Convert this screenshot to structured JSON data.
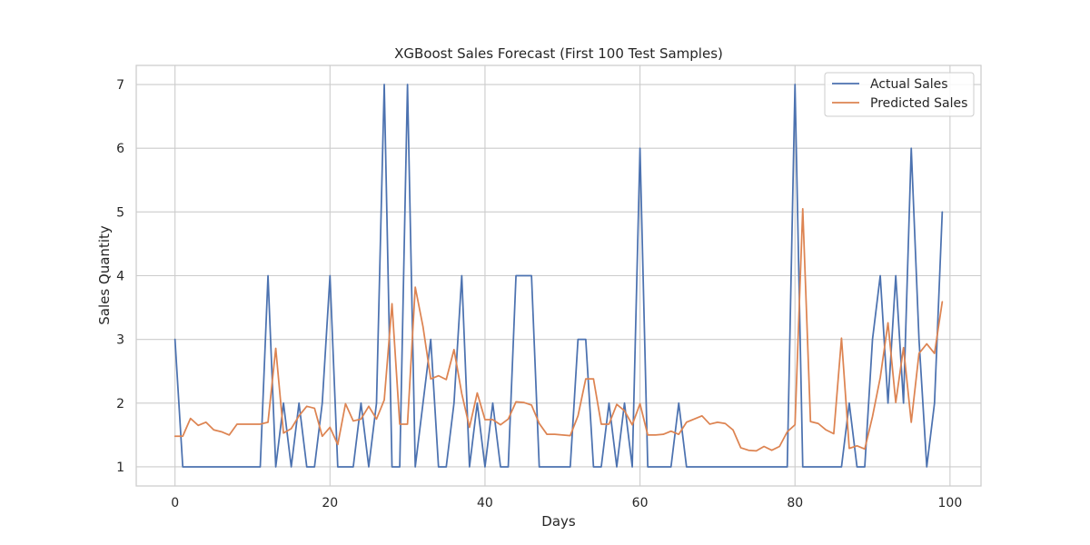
{
  "chart_data": {
    "type": "line",
    "title": "XGBoost Sales Forecast (First 100 Test Samples)",
    "xlabel": "Days",
    "ylabel": "Sales Quantity",
    "xlim": [
      -5,
      104
    ],
    "ylim": [
      0.7,
      7.3
    ],
    "xticks": [
      0,
      20,
      40,
      60,
      80,
      100
    ],
    "yticks": [
      1,
      2,
      3,
      4,
      5,
      6,
      7
    ],
    "grid": true,
    "legend_position": "top-right",
    "x": [
      0,
      1,
      2,
      3,
      4,
      5,
      6,
      7,
      8,
      9,
      10,
      11,
      12,
      13,
      14,
      15,
      16,
      17,
      18,
      19,
      20,
      21,
      22,
      23,
      24,
      25,
      26,
      27,
      28,
      29,
      30,
      31,
      32,
      33,
      34,
      35,
      36,
      37,
      38,
      39,
      40,
      41,
      42,
      43,
      44,
      45,
      46,
      47,
      48,
      49,
      50,
      51,
      52,
      53,
      54,
      55,
      56,
      57,
      58,
      59,
      60,
      61,
      62,
      63,
      64,
      65,
      66,
      67,
      68,
      69,
      70,
      71,
      72,
      73,
      74,
      75,
      76,
      77,
      78,
      79,
      80,
      81,
      82,
      83,
      84,
      85,
      86,
      87,
      88,
      89,
      90,
      91,
      92,
      93,
      94,
      95,
      96,
      97,
      98,
      99
    ],
    "series": [
      {
        "name": "Actual Sales",
        "color": "#4c72b0",
        "values": [
          3,
          1,
          1,
          1,
          1,
          1,
          1,
          1,
          1,
          1,
          1,
          1,
          4,
          1,
          2,
          1,
          2,
          1,
          1,
          2,
          4,
          1,
          1,
          1,
          2,
          1,
          2,
          7,
          1,
          1,
          7,
          1,
          2,
          3,
          1,
          1,
          2,
          4,
          1,
          2,
          1,
          2,
          1,
          1,
          4,
          4,
          4,
          1,
          1,
          1,
          1,
          1,
          3,
          3,
          1,
          1,
          2,
          1,
          2,
          1,
          6,
          1,
          1,
          1,
          1,
          2,
          1,
          1,
          1,
          1,
          1,
          1,
          1,
          1,
          1,
          1,
          1,
          1,
          1,
          1,
          7,
          1,
          1,
          1,
          1,
          1,
          1,
          2,
          1,
          1,
          3,
          4,
          2,
          4,
          2,
          6,
          3,
          1,
          2,
          5
        ]
      },
      {
        "name": "Predicted Sales",
        "color": "#dd8452",
        "values": [
          1.48,
          1.48,
          1.76,
          1.65,
          1.7,
          1.58,
          1.55,
          1.5,
          1.67,
          1.67,
          1.67,
          1.67,
          1.7,
          2.86,
          1.53,
          1.6,
          1.8,
          1.95,
          1.92,
          1.48,
          1.62,
          1.35,
          1.99,
          1.72,
          1.75,
          1.95,
          1.75,
          2.05,
          3.56,
          1.67,
          1.67,
          3.82,
          3.2,
          2.38,
          2.43,
          2.37,
          2.84,
          2.15,
          1.62,
          2.16,
          1.74,
          1.74,
          1.66,
          1.75,
          2.02,
          2.01,
          1.97,
          1.68,
          1.51,
          1.51,
          1.5,
          1.49,
          1.8,
          2.38,
          2.38,
          1.67,
          1.67,
          1.98,
          1.88,
          1.66,
          1.99,
          1.5,
          1.5,
          1.51,
          1.56,
          1.51,
          1.7,
          1.75,
          1.8,
          1.67,
          1.7,
          1.68,
          1.58,
          1.3,
          1.26,
          1.25,
          1.32,
          1.26,
          1.32,
          1.55,
          1.66,
          5.05,
          1.71,
          1.68,
          1.58,
          1.52,
          3.02,
          1.29,
          1.33,
          1.28,
          1.79,
          2.4,
          3.26,
          2.01,
          2.87,
          1.7,
          2.78,
          2.93,
          2.78,
          3.59
        ]
      }
    ]
  }
}
